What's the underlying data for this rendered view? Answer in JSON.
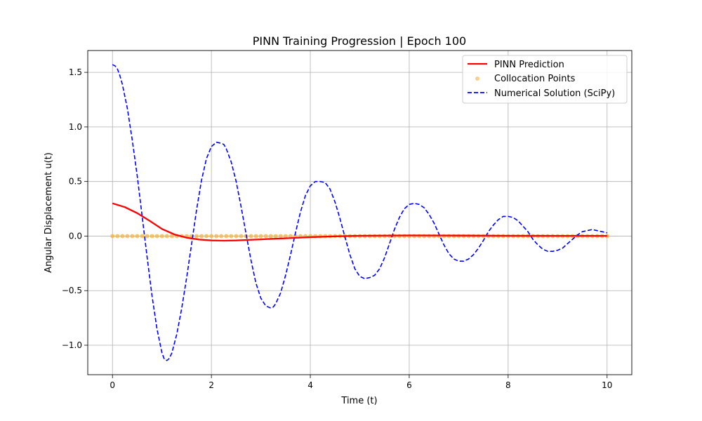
{
  "chart_data": {
    "type": "line",
    "title": "PINN Training Progression | Epoch 100",
    "xlabel": "Time (t)",
    "ylabel": "Angular Displacement u(t)",
    "xlim": [
      -0.5,
      10.5
    ],
    "ylim": [
      -1.27,
      1.7
    ],
    "xticks": [
      0,
      2,
      4,
      6,
      8,
      10
    ],
    "xtick_labels": [
      "0",
      "2",
      "4",
      "6",
      "8",
      "10"
    ],
    "yticks": [
      -1.0,
      -0.5,
      0.0,
      0.5,
      1.0,
      1.5
    ],
    "ytick_labels": [
      "−1.0",
      "−0.5",
      "0.0",
      "0.5",
      "1.0",
      "1.5"
    ],
    "grid": true,
    "legend_position": "top-right",
    "series": [
      {
        "name": "PINN Prediction",
        "style": "solid-line",
        "color": "#ff0000",
        "x": [
          0,
          0.25,
          0.5,
          0.75,
          1.0,
          1.25,
          1.5,
          1.75,
          2.0,
          2.25,
          2.5,
          2.75,
          3.0,
          3.5,
          4.0,
          4.5,
          5.0,
          6.0,
          7.0,
          8.0,
          9.0,
          10.0
        ],
        "y": [
          0.3,
          0.265,
          0.21,
          0.14,
          0.065,
          0.015,
          -0.015,
          -0.032,
          -0.04,
          -0.042,
          -0.04,
          -0.035,
          -0.03,
          -0.02,
          -0.01,
          -0.002,
          0.003,
          0.006,
          0.005,
          0.003,
          0.002,
          0.002
        ]
      },
      {
        "name": "Collocation Points",
        "style": "scatter",
        "color": "#f5b041",
        "x_range": [
          0,
          10
        ],
        "count": 101,
        "y_value": 0.0
      },
      {
        "name": "Numerical Solution (SciPy)",
        "style": "dashed-line",
        "color": "#0000ff",
        "x": [
          0,
          0.05,
          0.1,
          0.15,
          0.2,
          0.3,
          0.4,
          0.5,
          0.6,
          0.7,
          0.8,
          0.9,
          1.0,
          1.05,
          1.1,
          1.15,
          1.2,
          1.3,
          1.4,
          1.5,
          1.6,
          1.7,
          1.8,
          1.9,
          2.0,
          2.1,
          2.2,
          2.25,
          2.3,
          2.4,
          2.5,
          2.6,
          2.7,
          2.8,
          2.9,
          3.0,
          3.1,
          3.2,
          3.25,
          3.3,
          3.4,
          3.5,
          3.6,
          3.7,
          3.8,
          3.9,
          4.0,
          4.1,
          4.2,
          4.3,
          4.4,
          4.5,
          4.6,
          4.7,
          4.8,
          4.9,
          5.0,
          5.1,
          5.2,
          5.3,
          5.4,
          5.5,
          5.6,
          5.7,
          5.8,
          5.9,
          6.0,
          6.1,
          6.2,
          6.3,
          6.4,
          6.5,
          6.6,
          6.7,
          6.8,
          6.9,
          7.0,
          7.1,
          7.2,
          7.3,
          7.4,
          7.5,
          7.6,
          7.7,
          7.8,
          7.9,
          8.0,
          8.1,
          8.2,
          8.3,
          8.4,
          8.5,
          8.6,
          8.7,
          8.8,
          8.9,
          9.0,
          9.1,
          9.2,
          9.3,
          9.4,
          9.5,
          9.6,
          9.7,
          9.8,
          9.9,
          10.0
        ],
        "y": [
          1.57,
          1.56,
          1.53,
          1.47,
          1.39,
          1.17,
          0.88,
          0.55,
          0.18,
          -0.19,
          -0.55,
          -0.85,
          -1.07,
          -1.13,
          -1.14,
          -1.12,
          -1.07,
          -0.9,
          -0.66,
          -0.38,
          -0.07,
          0.24,
          0.51,
          0.71,
          0.82,
          0.86,
          0.85,
          0.84,
          0.8,
          0.68,
          0.5,
          0.27,
          0.02,
          -0.22,
          -0.43,
          -0.57,
          -0.64,
          -0.66,
          -0.65,
          -0.62,
          -0.52,
          -0.36,
          -0.17,
          0.03,
          0.22,
          0.37,
          0.46,
          0.5,
          0.5,
          0.49,
          0.43,
          0.31,
          0.16,
          -0.01,
          -0.17,
          -0.3,
          -0.37,
          -0.39,
          -0.38,
          -0.36,
          -0.3,
          -0.2,
          -0.07,
          0.06,
          0.17,
          0.25,
          0.29,
          0.3,
          0.29,
          0.26,
          0.2,
          0.12,
          0.02,
          -0.08,
          -0.16,
          -0.21,
          -0.23,
          -0.23,
          -0.21,
          -0.17,
          -0.11,
          -0.04,
          0.04,
          0.1,
          0.15,
          0.18,
          0.18,
          0.17,
          0.14,
          0.09,
          0.04,
          -0.03,
          -0.08,
          -0.12,
          -0.14,
          -0.14,
          -0.13,
          -0.11,
          -0.07,
          -0.03,
          0.01,
          0.04,
          0.05,
          0.06,
          0.05,
          0.04,
          0.03
        ]
      }
    ]
  },
  "colors": {
    "axes": "#000000",
    "grid": "#b0b0b0",
    "background": "#ffffff"
  }
}
